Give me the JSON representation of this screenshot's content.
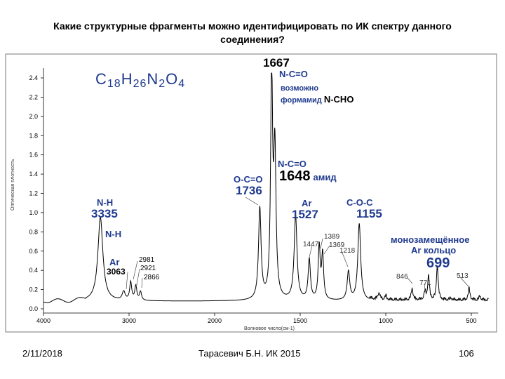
{
  "slide": {
    "title_line1": "Какие структурные фрагменты можно идентифицировать по ИК спектру данного",
    "title_line2": "соединения?",
    "date": "2/11/2018",
    "author": "Тарасевич Б.Н. ИК 2015",
    "page": "106"
  },
  "colors": {
    "annotation": "#1f3a8f",
    "spectrum": "#000000",
    "frame": "#777777"
  },
  "annotations": {
    "formula": {
      "c": "C",
      "c_n": "18",
      "h": "H",
      "h_n": "26",
      "n": "N",
      "n_n": "2",
      "o": "O",
      "o_n": "4"
    },
    "p1667": "1667",
    "nco_top": "N-C=O",
    "possibly": "возможно",
    "formamide": "формамид",
    "ncho": "N-CHO",
    "nco_mid": "N-C=O",
    "p1648": "1648",
    "amide": "амид",
    "oco": "O-C=O",
    "p1736": "1736",
    "nh1": "N-H",
    "p3335": "3335",
    "nh2": "N-H",
    "ar1": "Ar",
    "p3063": "3063",
    "p2981": "2981",
    "p2921": "2921",
    "p2866": "2866",
    "ar2": "Ar",
    "p1527": "1527",
    "coc": "C-O-C",
    "p1155": "1155",
    "p1389": "1389",
    "p1447": "1447",
    "p1369": "1369",
    "p1218": "1218",
    "mono1": "монозамещённое",
    "mono2": "Ar кольцо",
    "p699": "699",
    "p846": "846",
    "p771": "771",
    "p513": "513"
  },
  "chart_data": {
    "type": "line",
    "title": "",
    "xlabel": "Волновое число(см-1)",
    "ylabel": "Оптическая плотность",
    "xlim": [
      4000,
      400
    ],
    "ylim": [
      0.0,
      2.45
    ],
    "x_ticks": [
      4000,
      3000,
      2000,
      1500,
      1000,
      500
    ],
    "y_ticks": [
      0.0,
      0.2,
      0.4,
      0.6,
      0.8,
      1.0,
      1.2,
      1.4,
      1.6,
      1.8,
      2.0,
      2.2,
      2.4
    ],
    "grid": false,
    "baseline": 0.08,
    "peaks": [
      {
        "x": 3335,
        "y": 0.95,
        "w": 35
      },
      {
        "x": 3063,
        "y": 0.17,
        "w": 20
      },
      {
        "x": 2981,
        "y": 0.27,
        "w": 14
      },
      {
        "x": 2921,
        "y": 0.23,
        "w": 14
      },
      {
        "x": 2866,
        "y": 0.17,
        "w": 14
      },
      {
        "x": 1736,
        "y": 1.03,
        "w": 9
      },
      {
        "x": 1667,
        "y": 2.42,
        "w": 7
      },
      {
        "x": 1648,
        "y": 1.58,
        "w": 8
      },
      {
        "x": 1527,
        "y": 0.96,
        "w": 10
      },
      {
        "x": 1447,
        "y": 0.5,
        "w": 8
      },
      {
        "x": 1389,
        "y": 0.63,
        "w": 7
      },
      {
        "x": 1369,
        "y": 0.55,
        "w": 7
      },
      {
        "x": 1218,
        "y": 0.38,
        "w": 9
      },
      {
        "x": 1155,
        "y": 0.88,
        "w": 10
      },
      {
        "x": 1040,
        "y": 0.15,
        "w": 7
      },
      {
        "x": 1000,
        "y": 0.12,
        "w": 6
      },
      {
        "x": 846,
        "y": 0.2,
        "w": 6
      },
      {
        "x": 771,
        "y": 0.16,
        "w": 6
      },
      {
        "x": 750,
        "y": 0.33,
        "w": 6
      },
      {
        "x": 699,
        "y": 0.44,
        "w": 6
      },
      {
        "x": 620,
        "y": 0.1,
        "w": 6
      },
      {
        "x": 513,
        "y": 0.2,
        "w": 6
      },
      {
        "x": 450,
        "y": 0.12,
        "w": 6
      }
    ]
  }
}
